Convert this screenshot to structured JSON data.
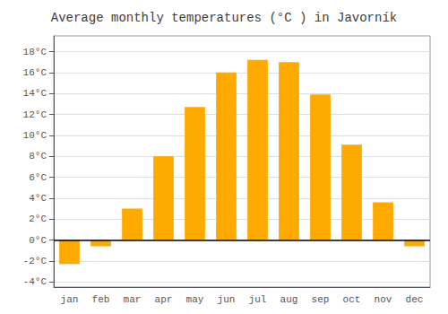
{
  "chart_data": {
    "type": "bar",
    "title": "Average monthly temperatures (°C ) in Javorník",
    "categories": [
      "jan",
      "feb",
      "mar",
      "apr",
      "may",
      "jun",
      "jul",
      "aug",
      "sep",
      "oct",
      "nov",
      "dec"
    ],
    "values": [
      -2.3,
      -0.6,
      3.0,
      8.0,
      12.7,
      16.0,
      17.2,
      17.0,
      13.9,
      9.1,
      3.6,
      -0.6
    ],
    "color": "#FFAA00",
    "ylim": [
      -4.5,
      19.5
    ],
    "yticks": [
      {
        "value": -4,
        "label": "-4°C"
      },
      {
        "value": -2,
        "label": "-2°C"
      },
      {
        "value": 0,
        "label": "0°C"
      },
      {
        "value": 2,
        "label": "2°C"
      },
      {
        "value": 4,
        "label": "4°C"
      },
      {
        "value": 6,
        "label": "6°C"
      },
      {
        "value": 8,
        "label": "8°C"
      },
      {
        "value": 10,
        "label": "10°C"
      },
      {
        "value": 12,
        "label": "12°C"
      },
      {
        "value": 14,
        "label": "14°C"
      },
      {
        "value": 16,
        "label": "16°C"
      },
      {
        "value": 18,
        "label": "18°C"
      }
    ],
    "grid": true
  }
}
